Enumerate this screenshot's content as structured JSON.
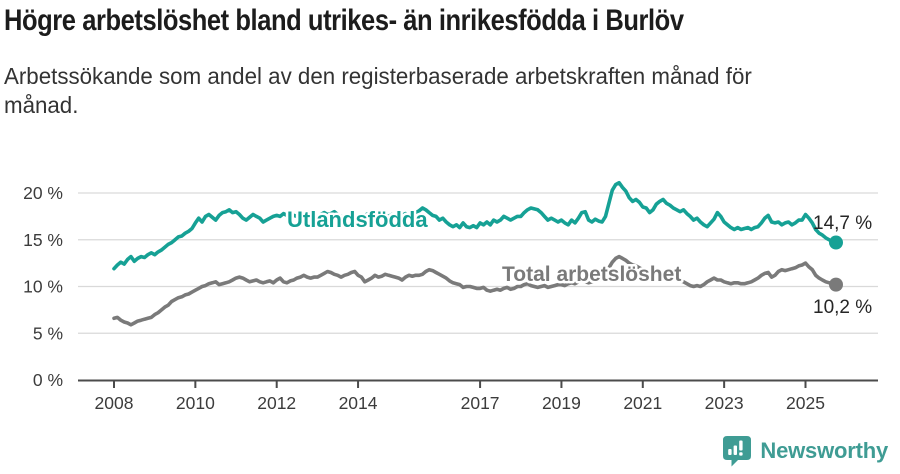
{
  "header": {
    "title": "Högre arbetslöshet bland utrikes- än inrikesfödda i Burlöv",
    "subtitle_lines": [
      "Arbetssökande som andel av den registerbaserade arbetskraften månad för",
      "månad."
    ]
  },
  "chart_data": {
    "type": "line",
    "title": "Högre arbetslöshet bland utrikes- än inrikesfödda i Burlöv",
    "subtitle": "Arbetssökande som andel av den registerbaserade arbetskraften månad för månad.",
    "x_unit": "month",
    "x_start": "2008-01",
    "x_end": "2025-10",
    "xlabel": "",
    "ylabel": "",
    "ylim": [
      0,
      21.5
    ],
    "grid": true,
    "legend_position": "inline",
    "y_ticks": [
      {
        "value": 0,
        "label": "0 %"
      },
      {
        "value": 5,
        "label": "5 %"
      },
      {
        "value": 10,
        "label": "10 %"
      },
      {
        "value": 15,
        "label": "15 %"
      },
      {
        "value": 20,
        "label": "20 %"
      }
    ],
    "x_ticks": [
      {
        "year": 2008,
        "label": "2008"
      },
      {
        "year": 2010,
        "label": "2010"
      },
      {
        "year": 2012,
        "label": "2012"
      },
      {
        "year": 2014,
        "label": "2014"
      },
      {
        "year": 2017,
        "label": "2017"
      },
      {
        "year": 2019,
        "label": "2019"
      },
      {
        "year": 2021,
        "label": "2021"
      },
      {
        "year": 2023,
        "label": "2023"
      },
      {
        "year": 2025,
        "label": "2025"
      }
    ],
    "series": [
      {
        "id": "utlandsfodda",
        "name": "Utlandsfödda",
        "color": "#16a195",
        "end_label": "14,7 %",
        "end_value": 14.7,
        "values": [
          11.9,
          12.3,
          12.6,
          12.4,
          12.9,
          13.2,
          12.7,
          13.0,
          13.2,
          13.1,
          13.4,
          13.6,
          13.4,
          13.7,
          13.9,
          14.2,
          14.5,
          14.7,
          15.0,
          15.3,
          15.4,
          15.7,
          15.9,
          16.2,
          16.8,
          17.3,
          16.9,
          17.5,
          17.7,
          17.4,
          17.1,
          17.6,
          17.9,
          18.0,
          18.2,
          17.9,
          18.0,
          17.7,
          17.3,
          17.1,
          17.4,
          17.7,
          17.5,
          17.3,
          16.9,
          17.1,
          17.3,
          17.5,
          17.6,
          17.5,
          17.8,
          17.6,
          17.4,
          17.6,
          17.5,
          17.3,
          17.5,
          17.7,
          17.6,
          17.4,
          17.5,
          17.7,
          17.9,
          17.7,
          17.8,
          18.0,
          17.7,
          17.5,
          17.3,
          17.5,
          17.6,
          17.4,
          17.5,
          17.3,
          17.6,
          17.8,
          17.5,
          17.4,
          17.6,
          17.8,
          17.6,
          17.5,
          17.7,
          17.5,
          17.4,
          17.6,
          17.8,
          17.5,
          17.7,
          17.9,
          18.1,
          18.4,
          18.2,
          17.9,
          17.6,
          17.5,
          17.1,
          17.3,
          16.9,
          16.6,
          16.4,
          16.6,
          16.3,
          16.8,
          16.4,
          16.3,
          16.5,
          16.3,
          16.8,
          16.6,
          16.9,
          16.6,
          17.1,
          16.9,
          17.1,
          17.5,
          17.3,
          17.1,
          17.3,
          17.5,
          17.5,
          17.9,
          18.2,
          18.4,
          18.3,
          18.2,
          17.9,
          17.5,
          17.1,
          17.3,
          17.1,
          16.9,
          17.1,
          16.8,
          16.6,
          17.1,
          16.8,
          17.3,
          17.9,
          18.0,
          17.1,
          16.9,
          17.2,
          17.0,
          16.9,
          17.5,
          18.9,
          20.3,
          20.9,
          21.1,
          20.6,
          20.2,
          19.5,
          19.1,
          19.3,
          19.0,
          18.5,
          18.4,
          17.9,
          18.2,
          18.8,
          19.1,
          19.3,
          18.9,
          18.7,
          18.4,
          18.2,
          18.0,
          18.2,
          17.8,
          17.5,
          17.1,
          17.3,
          16.9,
          16.6,
          16.4,
          16.8,
          17.2,
          17.9,
          17.5,
          16.9,
          16.6,
          16.3,
          16.1,
          16.3,
          16.1,
          16.2,
          16.3,
          16.1,
          16.3,
          16.4,
          16.8,
          17.3,
          17.6,
          16.9,
          16.8,
          16.9,
          16.6,
          16.8,
          16.9,
          16.6,
          16.8,
          17.1,
          17.1,
          17.7,
          17.3,
          16.8,
          16.1,
          15.7,
          15.5,
          15.2,
          15.0,
          14.8,
          14.7
        ]
      },
      {
        "id": "total",
        "name": "Total arbetslöshet",
        "color": "#7a7a7a",
        "end_label": "10,2 %",
        "end_value": 10.2,
        "values": [
          6.6,
          6.7,
          6.4,
          6.2,
          6.1,
          5.9,
          6.1,
          6.3,
          6.4,
          6.5,
          6.6,
          6.7,
          7.0,
          7.2,
          7.5,
          7.8,
          8.0,
          8.4,
          8.6,
          8.8,
          8.9,
          9.1,
          9.2,
          9.4,
          9.6,
          9.8,
          10.0,
          10.1,
          10.3,
          10.4,
          10.5,
          10.2,
          10.3,
          10.4,
          10.5,
          10.7,
          10.9,
          11.0,
          10.9,
          10.7,
          10.5,
          10.6,
          10.7,
          10.5,
          10.4,
          10.5,
          10.6,
          10.4,
          10.7,
          10.9,
          10.5,
          10.4,
          10.6,
          10.7,
          10.9,
          11.0,
          11.2,
          11.0,
          10.9,
          11.0,
          11.0,
          11.2,
          11.4,
          11.6,
          11.5,
          11.3,
          11.2,
          11.0,
          11.2,
          11.3,
          11.5,
          11.6,
          11.2,
          11.0,
          10.5,
          10.7,
          10.9,
          11.2,
          11.0,
          11.1,
          11.3,
          11.2,
          11.1,
          11.0,
          10.9,
          10.7,
          11.0,
          11.2,
          11.1,
          11.2,
          11.2,
          11.3,
          11.6,
          11.8,
          11.7,
          11.5,
          11.3,
          11.1,
          10.9,
          10.6,
          10.4,
          10.3,
          10.2,
          9.9,
          10.0,
          10.0,
          9.9,
          9.8,
          9.8,
          9.9,
          9.6,
          9.5,
          9.6,
          9.7,
          9.6,
          9.8,
          9.9,
          9.7,
          9.8,
          10.0,
          10.0,
          10.2,
          10.3,
          10.1,
          10.0,
          9.9,
          10.0,
          10.1,
          9.9,
          10.0,
          10.1,
          10.2,
          10.2,
          10.1,
          10.3,
          10.4,
          10.3,
          10.5,
          10.6,
          10.5,
          10.4,
          10.5,
          10.6,
          10.7,
          10.8,
          11.2,
          12.0,
          12.6,
          13.0,
          13.2,
          13.0,
          12.8,
          12.5,
          12.3,
          12.2,
          12.0,
          11.8,
          11.7,
          11.5,
          11.4,
          11.5,
          11.6,
          11.5,
          11.3,
          11.1,
          10.9,
          10.7,
          10.6,
          10.5,
          10.3,
          10.1,
          10.0,
          10.1,
          10.0,
          10.2,
          10.5,
          10.7,
          10.9,
          10.7,
          10.7,
          10.5,
          10.4,
          10.3,
          10.4,
          10.4,
          10.3,
          10.3,
          10.4,
          10.5,
          10.7,
          10.9,
          11.2,
          11.4,
          11.5,
          11.0,
          11.2,
          11.6,
          11.8,
          11.7,
          11.8,
          11.9,
          12.0,
          12.2,
          12.3,
          12.5,
          12.1,
          11.8,
          11.2,
          10.9,
          10.7,
          10.5,
          10.4,
          10.3,
          10.2
        ]
      }
    ]
  },
  "footer": {
    "brand": "Newsworthy",
    "brand_color": "#3f9c94",
    "logo_icon": "newsworthy-bar-chart-bubble-icon"
  }
}
